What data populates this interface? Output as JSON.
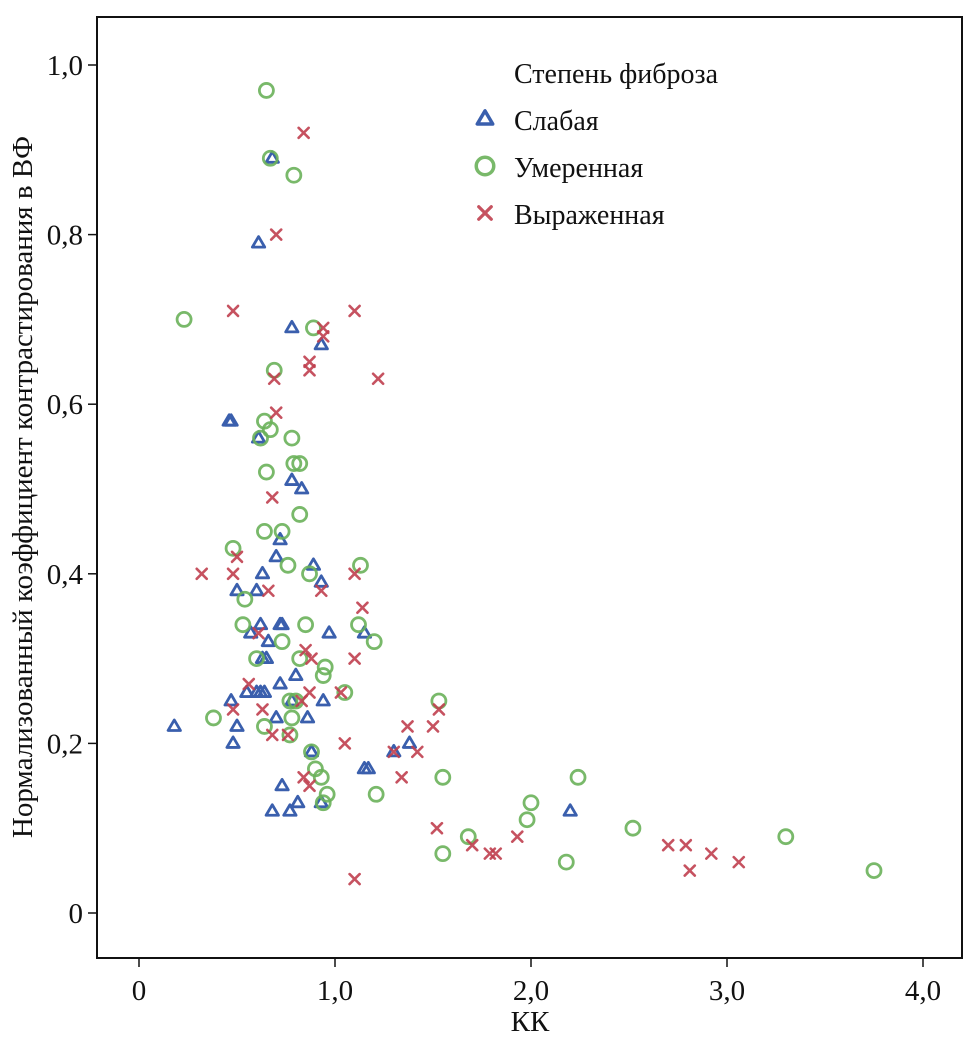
{
  "chart_data": {
    "type": "scatter",
    "title": "",
    "xlabel": "КК",
    "ylabel": "Нормализованный коэффициент контрастирования в ВФ",
    "xlim": [
      -0.2,
      4.2
    ],
    "ylim": [
      -0.055,
      1.055
    ],
    "x_ticks": [
      0,
      1.0,
      2.0,
      3.0,
      4.0
    ],
    "x_tick_labels": [
      "0",
      "1,0",
      "2,0",
      "3,0",
      "4,0"
    ],
    "y_ticks": [
      0,
      0.2,
      0.4,
      0.6,
      0.8,
      1.0
    ],
    "y_tick_labels": [
      "0",
      "0,2",
      "0,4",
      "0,6",
      "0,8",
      "1,0"
    ],
    "grid": false,
    "legend": {
      "title": "Степень фиброза",
      "placement": "top-right"
    },
    "series": [
      {
        "name": "Слабая",
        "marker": "triangle",
        "color": "#3a5fad",
        "points": [
          [
            0.68,
            0.89
          ],
          [
            0.61,
            0.79
          ],
          [
            0.78,
            0.69
          ],
          [
            0.93,
            0.67
          ],
          [
            0.47,
            0.58
          ],
          [
            0.46,
            0.58
          ],
          [
            0.61,
            0.56
          ],
          [
            0.78,
            0.51
          ],
          [
            0.83,
            0.5
          ],
          [
            0.72,
            0.44
          ],
          [
            0.7,
            0.42
          ],
          [
            0.89,
            0.41
          ],
          [
            0.93,
            0.39
          ],
          [
            0.63,
            0.4
          ],
          [
            0.5,
            0.38
          ],
          [
            0.6,
            0.38
          ],
          [
            0.72,
            0.34
          ],
          [
            0.73,
            0.34
          ],
          [
            0.62,
            0.34
          ],
          [
            0.57,
            0.33
          ],
          [
            0.97,
            0.33
          ],
          [
            1.15,
            0.33
          ],
          [
            0.66,
            0.32
          ],
          [
            0.63,
            0.3
          ],
          [
            0.65,
            0.3
          ],
          [
            0.8,
            0.28
          ],
          [
            0.72,
            0.27
          ],
          [
            0.55,
            0.26
          ],
          [
            0.6,
            0.26
          ],
          [
            0.62,
            0.26
          ],
          [
            0.64,
            0.26
          ],
          [
            0.47,
            0.25
          ],
          [
            0.86,
            0.23
          ],
          [
            0.7,
            0.23
          ],
          [
            0.78,
            0.25
          ],
          [
            0.18,
            0.22
          ],
          [
            0.5,
            0.22
          ],
          [
            0.48,
            0.2
          ],
          [
            0.88,
            0.19
          ],
          [
            0.94,
            0.25
          ],
          [
            1.3,
            0.19
          ],
          [
            1.38,
            0.2
          ],
          [
            1.15,
            0.17
          ],
          [
            1.17,
            0.17
          ],
          [
            0.73,
            0.15
          ],
          [
            0.81,
            0.13
          ],
          [
            0.93,
            0.13
          ],
          [
            0.68,
            0.12
          ],
          [
            0.77,
            0.12
          ],
          [
            2.2,
            0.12
          ]
        ]
      },
      {
        "name": "Умеренная",
        "marker": "circle",
        "color": "#6ab15a",
        "points": [
          [
            0.65,
            0.97
          ],
          [
            0.67,
            0.89
          ],
          [
            0.79,
            0.87
          ],
          [
            0.23,
            0.7
          ],
          [
            0.89,
            0.69
          ],
          [
            0.69,
            0.64
          ],
          [
            0.64,
            0.58
          ],
          [
            0.62,
            0.56
          ],
          [
            0.67,
            0.57
          ],
          [
            0.78,
            0.56
          ],
          [
            0.65,
            0.52
          ],
          [
            0.79,
            0.53
          ],
          [
            0.82,
            0.53
          ],
          [
            0.82,
            0.47
          ],
          [
            0.64,
            0.45
          ],
          [
            0.73,
            0.45
          ],
          [
            0.48,
            0.43
          ],
          [
            0.76,
            0.41
          ],
          [
            0.87,
            0.4
          ],
          [
            1.13,
            0.41
          ],
          [
            0.54,
            0.37
          ],
          [
            0.53,
            0.34
          ],
          [
            0.85,
            0.34
          ],
          [
            1.12,
            0.34
          ],
          [
            0.73,
            0.32
          ],
          [
            1.2,
            0.32
          ],
          [
            0.6,
            0.3
          ],
          [
            0.82,
            0.3
          ],
          [
            0.95,
            0.29
          ],
          [
            0.94,
            0.28
          ],
          [
            1.05,
            0.26
          ],
          [
            0.77,
            0.25
          ],
          [
            0.8,
            0.25
          ],
          [
            0.38,
            0.23
          ],
          [
            0.64,
            0.22
          ],
          [
            0.78,
            0.23
          ],
          [
            0.77,
            0.21
          ],
          [
            0.88,
            0.19
          ],
          [
            0.9,
            0.17
          ],
          [
            0.93,
            0.16
          ],
          [
            0.96,
            0.14
          ],
          [
            0.94,
            0.13
          ],
          [
            1.21,
            0.14
          ],
          [
            1.53,
            0.25
          ],
          [
            1.55,
            0.16
          ],
          [
            1.55,
            0.07
          ],
          [
            1.68,
            0.09
          ],
          [
            1.98,
            0.11
          ],
          [
            2.0,
            0.13
          ],
          [
            2.18,
            0.06
          ],
          [
            2.24,
            0.16
          ],
          [
            2.52,
            0.1
          ],
          [
            3.3,
            0.09
          ],
          [
            3.75,
            0.05
          ]
        ]
      },
      {
        "name": "Выраженная",
        "marker": "x",
        "color": "#c0404f",
        "points": [
          [
            0.84,
            0.92
          ],
          [
            0.7,
            0.8
          ],
          [
            0.48,
            0.71
          ],
          [
            1.1,
            0.71
          ],
          [
            0.94,
            0.69
          ],
          [
            0.94,
            0.68
          ],
          [
            0.87,
            0.65
          ],
          [
            0.87,
            0.64
          ],
          [
            0.69,
            0.63
          ],
          [
            1.22,
            0.63
          ],
          [
            0.7,
            0.59
          ],
          [
            0.68,
            0.49
          ],
          [
            0.32,
            0.4
          ],
          [
            0.48,
            0.4
          ],
          [
            0.5,
            0.42
          ],
          [
            1.1,
            0.4
          ],
          [
            0.66,
            0.38
          ],
          [
            0.93,
            0.38
          ],
          [
            1.14,
            0.36
          ],
          [
            0.85,
            0.31
          ],
          [
            0.88,
            0.3
          ],
          [
            1.1,
            0.3
          ],
          [
            0.61,
            0.33
          ],
          [
            0.56,
            0.27
          ],
          [
            0.63,
            0.24
          ],
          [
            0.48,
            0.24
          ],
          [
            0.83,
            0.25
          ],
          [
            0.87,
            0.26
          ],
          [
            1.03,
            0.26
          ],
          [
            0.68,
            0.21
          ],
          [
            0.76,
            0.21
          ],
          [
            0.84,
            0.16
          ],
          [
            0.87,
            0.15
          ],
          [
            1.05,
            0.2
          ],
          [
            1.3,
            0.19
          ],
          [
            1.37,
            0.22
          ],
          [
            1.42,
            0.19
          ],
          [
            1.5,
            0.22
          ],
          [
            1.53,
            0.24
          ],
          [
            1.34,
            0.16
          ],
          [
            1.52,
            0.1
          ],
          [
            1.7,
            0.08
          ],
          [
            1.79,
            0.07
          ],
          [
            1.82,
            0.07
          ],
          [
            1.93,
            0.09
          ],
          [
            1.1,
            0.04
          ],
          [
            2.7,
            0.08
          ],
          [
            2.79,
            0.08
          ],
          [
            2.81,
            0.05
          ],
          [
            2.92,
            0.07
          ],
          [
            3.06,
            0.06
          ]
        ]
      }
    ]
  }
}
